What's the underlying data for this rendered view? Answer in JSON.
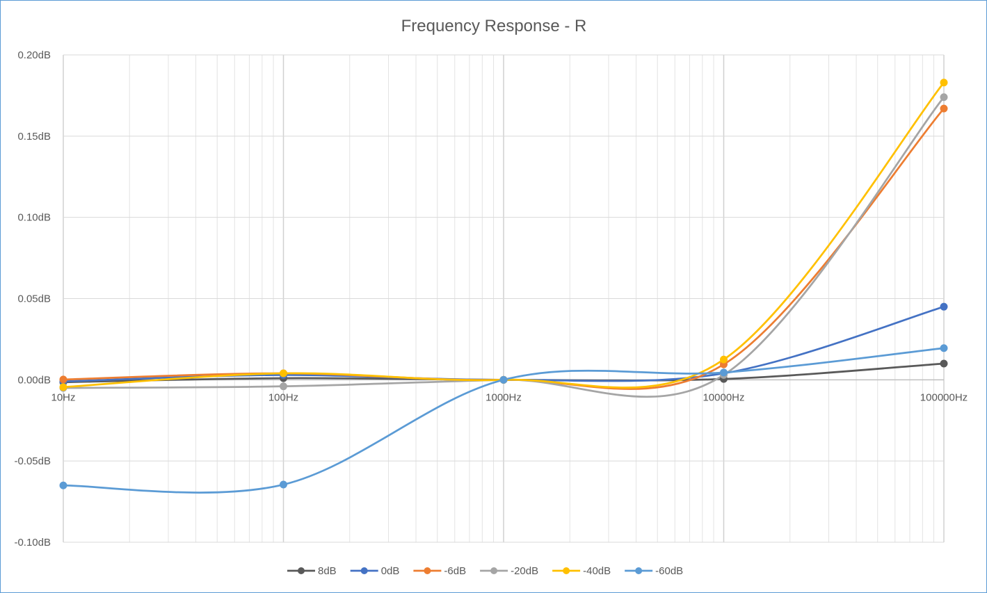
{
  "chart_data": {
    "type": "line",
    "title": "Frequency Response - R",
    "xscale": "log",
    "x": [
      10,
      100,
      1000,
      10000,
      100000
    ],
    "xlim": [
      10,
      100000
    ],
    "x_tick_labels": [
      "10Hz",
      "100Hz",
      "1000Hz",
      "10000Hz",
      "100000Hz"
    ],
    "ylim": [
      -0.1,
      0.2
    ],
    "y_ticks": [
      -0.1,
      -0.05,
      0.0,
      0.05,
      0.1,
      0.15,
      0.2
    ],
    "y_tick_labels": [
      "-0.10dB",
      "-0.05dB",
      "0.00dB",
      "0.05dB",
      "0.10dB",
      "0.15dB",
      "0.20dB"
    ],
    "grid": true,
    "legend_position": "bottom",
    "series": [
      {
        "name": "8dB",
        "color": "#595959",
        "values": [
          -0.0015,
          0.001,
          0.0,
          0.0005,
          0.01
        ]
      },
      {
        "name": "0dB",
        "color": "#4472c4",
        "values": [
          -0.001,
          0.003,
          0.0,
          0.004,
          0.045
        ]
      },
      {
        "name": "-6dB",
        "color": "#ed7d31",
        "values": [
          0.0002,
          0.004,
          0.0,
          0.0095,
          0.167
        ]
      },
      {
        "name": "-20dB",
        "color": "#a5a5a5",
        "values": [
          -0.005,
          -0.004,
          0.0,
          0.003,
          0.174
        ]
      },
      {
        "name": "-40dB",
        "color": "#ffc000",
        "values": [
          -0.0045,
          0.004,
          0.0,
          0.0125,
          0.183
        ]
      },
      {
        "name": "-60dB",
        "color": "#5b9bd5",
        "values": [
          -0.065,
          -0.0645,
          0.0,
          0.0045,
          0.0195
        ]
      }
    ]
  }
}
